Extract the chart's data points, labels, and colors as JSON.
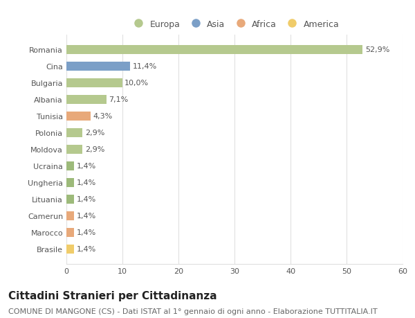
{
  "countries": [
    "Romania",
    "Cina",
    "Bulgaria",
    "Albania",
    "Tunisia",
    "Polonia",
    "Moldova",
    "Ucraina",
    "Ungheria",
    "Lituania",
    "Camerun",
    "Marocco",
    "Brasile"
  ],
  "values": [
    52.9,
    11.4,
    10.0,
    7.1,
    4.3,
    2.9,
    2.9,
    1.4,
    1.4,
    1.4,
    1.4,
    1.4,
    1.4
  ],
  "labels": [
    "52,9%",
    "11,4%",
    "10,0%",
    "7,1%",
    "4,3%",
    "2,9%",
    "2,9%",
    "1,4%",
    "1,4%",
    "1,4%",
    "1,4%",
    "1,4%",
    "1,4%"
  ],
  "colors": [
    "#b5c98e",
    "#7b9fc7",
    "#b5c98e",
    "#b5c98e",
    "#e8a97a",
    "#b5c98e",
    "#b5c98e",
    "#9dba7a",
    "#9dba7a",
    "#9dba7a",
    "#e8a97a",
    "#e8a97a",
    "#f0cc6a"
  ],
  "legend_labels": [
    "Europa",
    "Asia",
    "Africa",
    "America"
  ],
  "legend_colors": [
    "#b5c98e",
    "#7b9fc7",
    "#e8a97a",
    "#f0cc6a"
  ],
  "xlim": [
    0,
    60
  ],
  "xticks": [
    0,
    10,
    20,
    30,
    40,
    50,
    60
  ],
  "title": "Cittadini Stranieri per Cittadinanza",
  "subtitle": "COMUNE DI MANGONE (CS) - Dati ISTAT al 1° gennaio di ogni anno - Elaborazione TUTTITALIA.IT",
  "bar_height": 0.55,
  "bg_color": "#ffffff",
  "grid_color": "#e0e0e0",
  "title_fontsize": 11,
  "subtitle_fontsize": 8,
  "label_fontsize": 8,
  "tick_fontsize": 8,
  "legend_fontsize": 9
}
